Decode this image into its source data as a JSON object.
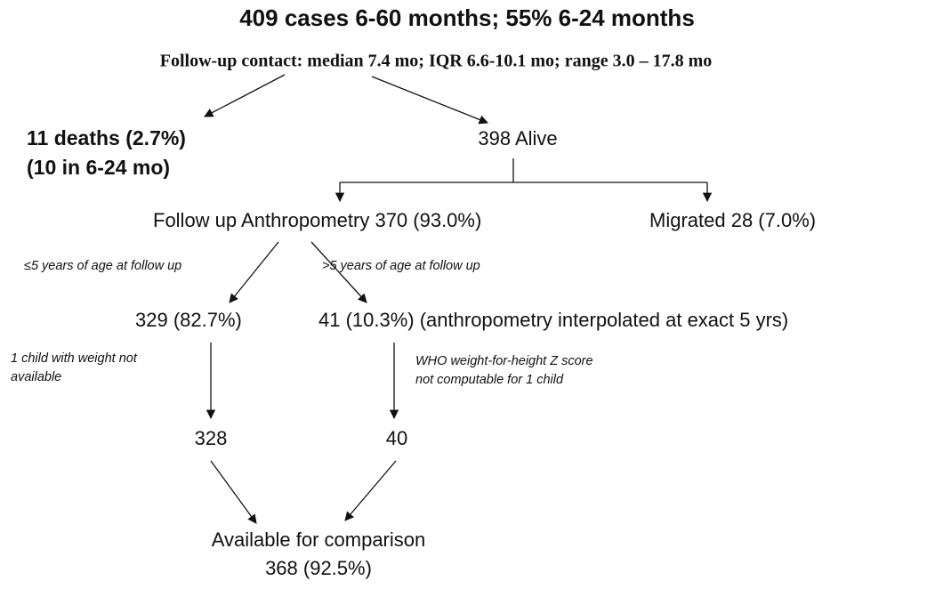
{
  "header": {
    "title": "409 cases 6-60 months; 55% 6-24 months",
    "subtitle": "Follow-up contact: median 7.4 mo; IQR 6.6-10.1 mo; range 3.0 – 17.8 mo"
  },
  "nodes": [
    {
      "lines": [
        "11 deaths (2.7%)",
        "(10 in 6-24 mo)"
      ]
    },
    {
      "lines": [
        "398 Alive"
      ]
    },
    {
      "lines": [
        "Follow up Anthropometry 370 (93.0%)"
      ]
    },
    {
      "lines": [
        "Migrated 28 (7.0%)"
      ]
    },
    {
      "lines": [
        "329 (82.7%)"
      ]
    },
    {
      "lines": [
        "41 (10.3%) (anthropometry interpolated at exact 5 yrs)"
      ]
    },
    {
      "lines": [
        "328"
      ]
    },
    {
      "lines": [
        "40"
      ]
    },
    {
      "lines": [
        "Available for comparison",
        "368 (92.5%)"
      ]
    }
  ],
  "notes": [
    {
      "lines": [
        "≤5 years of age at follow up"
      ]
    },
    {
      "lines": [
        ">5 years of age at follow up"
      ]
    },
    {
      "lines": [
        "1 child with weight not",
        "available"
      ]
    },
    {
      "lines": [
        "WHO weight-for-height Z score",
        "not computable for 1 child"
      ]
    }
  ]
}
